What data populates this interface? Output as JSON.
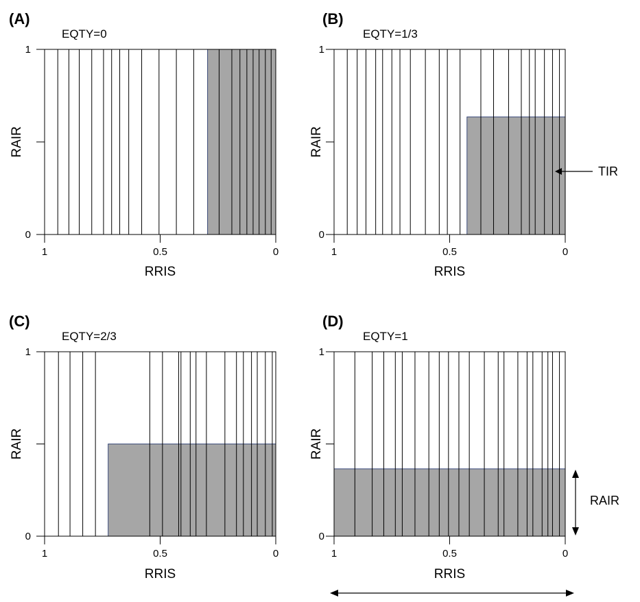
{
  "panels": [
    {
      "letter": "(A)",
      "subtitle": "EQTY=0",
      "ylabel": "RAIR",
      "xlabel": "RRIS",
      "y_ticks": [
        "1",
        "0"
      ],
      "x_ticks": [
        "1",
        "0.5",
        "0"
      ],
      "shade": {
        "rris_from": 0.295,
        "rris_to": 0.0,
        "rair": 1.0
      },
      "lines_rris": [
        0.943,
        0.895,
        0.85,
        0.796,
        0.745,
        0.71,
        0.675,
        0.636,
        0.58,
        0.505,
        0.43,
        0.355,
        0.245,
        0.19,
        0.155,
        0.125,
        0.098,
        0.072,
        0.045,
        0.02
      ]
    },
    {
      "letter": "(B)",
      "subtitle": "EQTY=1/3",
      "ylabel": "RAIR",
      "xlabel": "RRIS",
      "y_ticks": [
        "1",
        "0"
      ],
      "x_ticks": [
        "1",
        "0.5",
        "0"
      ],
      "shade": {
        "rris_from": 0.425,
        "rris_to": 0.0,
        "rair": 0.635
      },
      "lines_rris": [
        0.943,
        0.9,
        0.862,
        0.82,
        0.79,
        0.75,
        0.715,
        0.67,
        0.605,
        0.545,
        0.51,
        0.455,
        0.365,
        0.31,
        0.245,
        0.19,
        0.155,
        0.13,
        0.09,
        0.055,
        0.025
      ]
    },
    {
      "letter": "(C)",
      "subtitle": "EQTY=2/3",
      "ylabel": "RAIR",
      "xlabel": "RRIS",
      "y_ticks": [
        "1",
        "0"
      ],
      "x_ticks": [
        "1",
        "0.5",
        "0"
      ],
      "shade": {
        "rris_from": 0.725,
        "rris_to": 0.0,
        "rair": 0.5
      },
      "lines_rris": [
        0.94,
        0.89,
        0.835,
        0.78,
        0.545,
        0.49,
        0.42,
        0.41,
        0.37,
        0.345,
        0.3,
        0.22,
        0.17,
        0.14,
        0.105,
        0.08,
        0.045,
        0.015
      ]
    },
    {
      "letter": "(D)",
      "subtitle": "EQTY=1",
      "ylabel": "RAIR",
      "xlabel": "RRIS",
      "y_ticks": [
        "1",
        "0"
      ],
      "x_ticks": [
        "1",
        "0.5",
        "0"
      ],
      "shade": {
        "rris_from": 1.0,
        "rris_to": 0.0,
        "rair": 0.365
      },
      "lines_rris": [
        0.91,
        0.835,
        0.785,
        0.735,
        0.705,
        0.65,
        0.59,
        0.545,
        0.505,
        0.46,
        0.415,
        0.35,
        0.29,
        0.265,
        0.205,
        0.165,
        0.14,
        0.1,
        0.075,
        0.055,
        0.025
      ]
    }
  ],
  "annotations": {
    "tir_label": "TIR",
    "rair_label": "RAIR"
  },
  "colors": {
    "shade_fill": "#a6a6a6",
    "shade_edge": "#3a4a7a",
    "line": "#000000"
  }
}
